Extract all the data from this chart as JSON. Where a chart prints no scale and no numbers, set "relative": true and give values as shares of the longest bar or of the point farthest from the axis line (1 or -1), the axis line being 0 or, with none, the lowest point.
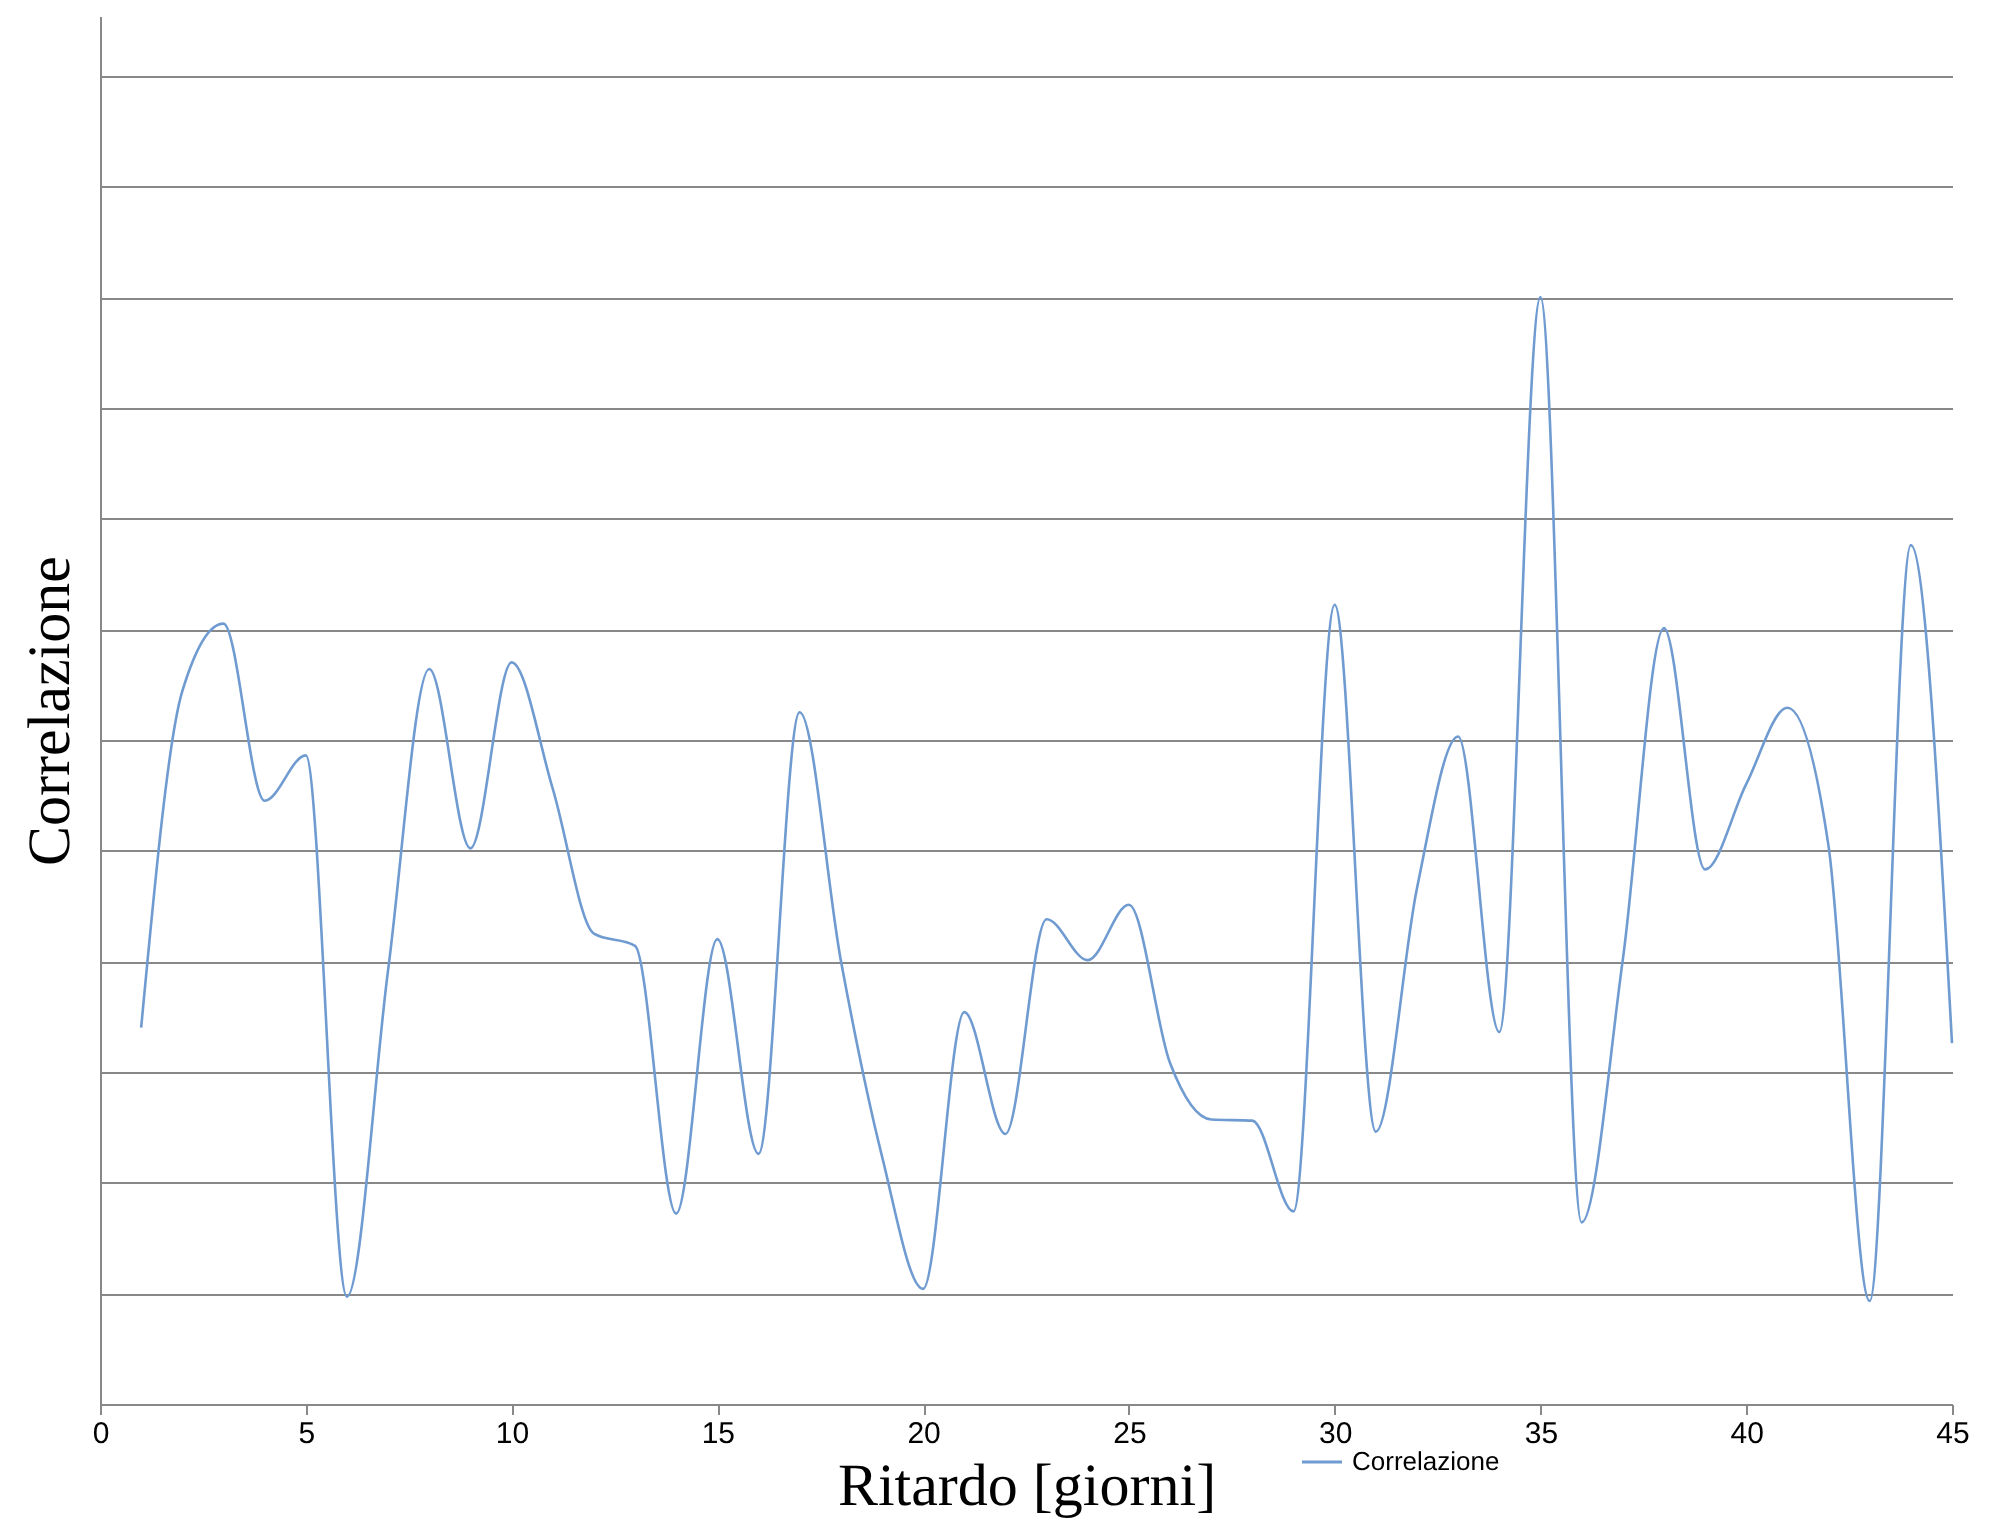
{
  "chart_data": {
    "type": "line",
    "xlabel": "Ritardo [giorni]",
    "ylabel": "Correlazione",
    "relative": true,
    "x": [
      1,
      2,
      3,
      4,
      5,
      6,
      7,
      8,
      9,
      10,
      11,
      12,
      13,
      14,
      15,
      16,
      17,
      18,
      19,
      20,
      21,
      22,
      23,
      24,
      25,
      26,
      27,
      28,
      29,
      30,
      31,
      32,
      33,
      34,
      35,
      36,
      37,
      38,
      39,
      40,
      41,
      42,
      43,
      44,
      45
    ],
    "series": [
      {
        "name": "Correlazione",
        "color": "#6f9bd1",
        "values": [
          0.34,
          0.644,
          0.705,
          0.545,
          0.586,
          0.097,
          0.392,
          0.664,
          0.502,
          0.67,
          0.556,
          0.425,
          0.414,
          0.172,
          0.42,
          0.226,
          0.625,
          0.401,
          0.224,
          0.104,
          0.354,
          0.244,
          0.438,
          0.401,
          0.451,
          0.308,
          0.257,
          0.256,
          0.174,
          0.722,
          0.246,
          0.466,
          0.603,
          0.336,
          1,
          0.164,
          0.401,
          0.701,
          0.483,
          0.56,
          0.629,
          0.504,
          0.093,
          0.776,
          0.326
        ]
      }
    ],
    "xlim": [
      0,
      45
    ],
    "xticks": [
      0,
      5,
      10,
      15,
      20,
      25,
      30,
      35,
      40,
      45
    ],
    "grid": "y",
    "legend": "bottom",
    "marker": "none",
    "line_style": "solid"
  }
}
